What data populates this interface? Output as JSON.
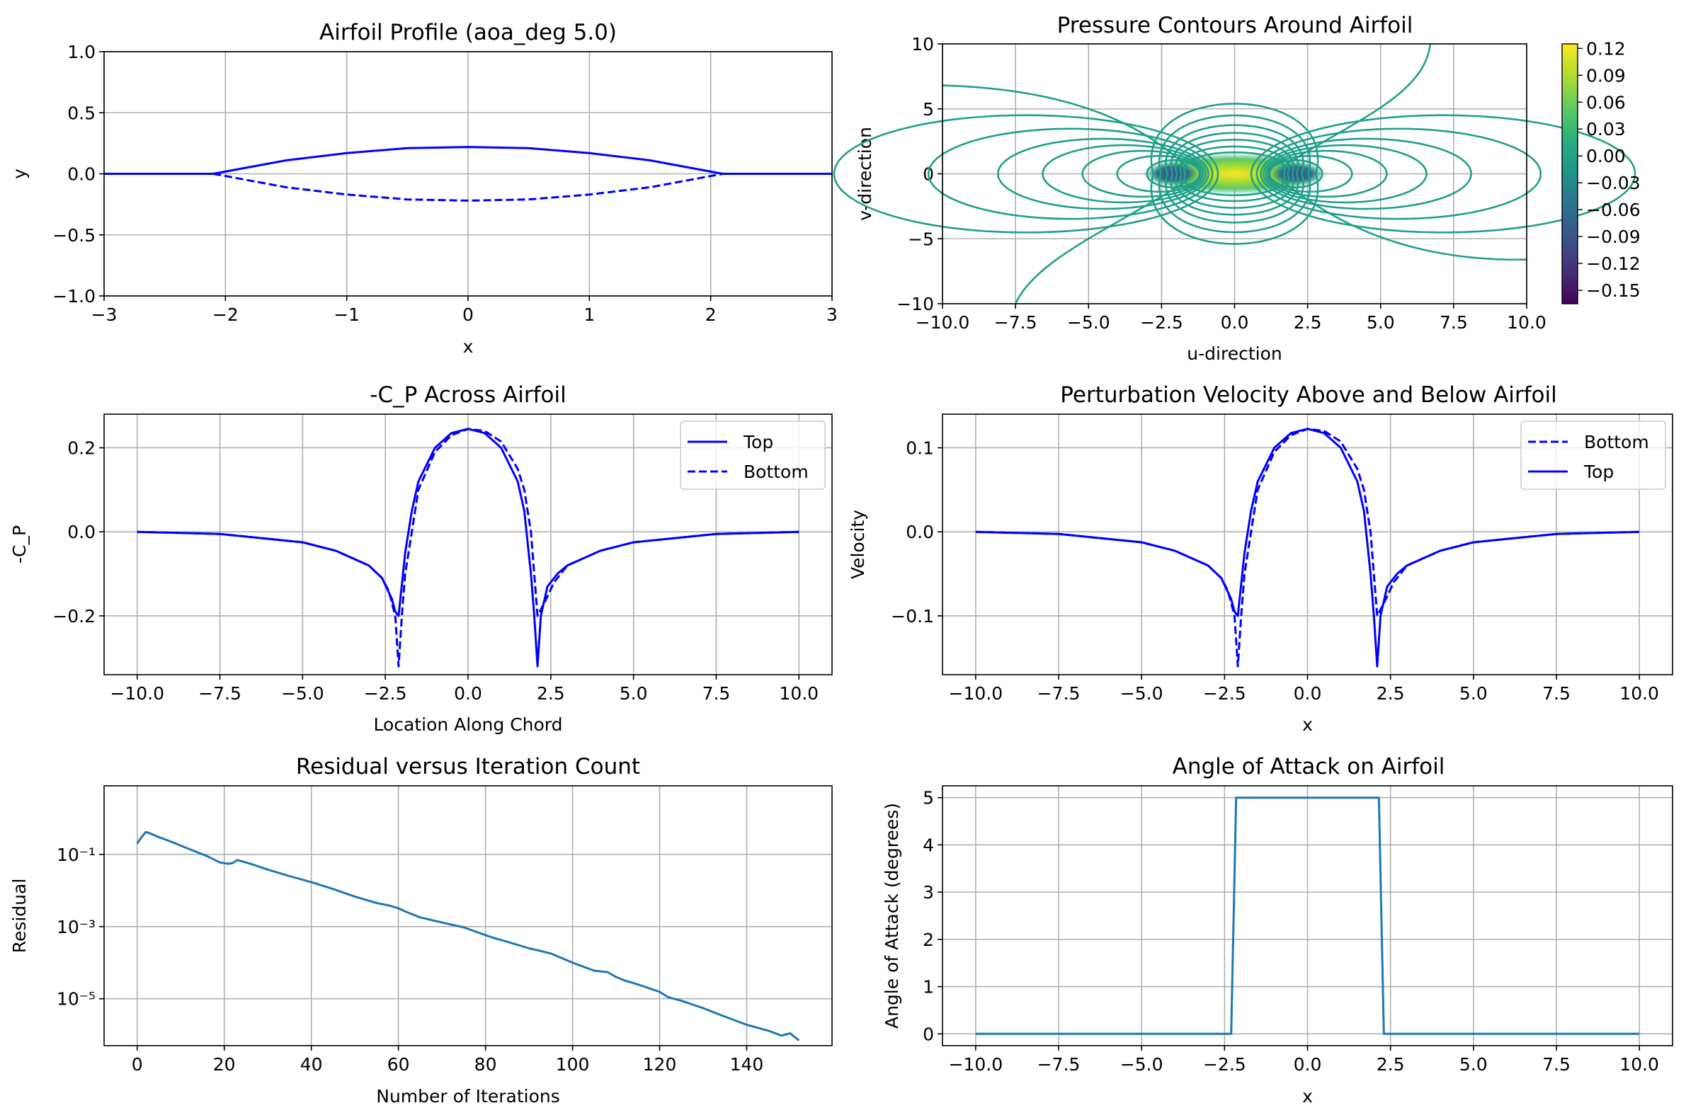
{
  "figure": {
    "colors": {
      "blue": "#0000ff",
      "mpl_blue": "#1f77b4",
      "grid": "#b0b0b0",
      "contour": "#21a08a"
    }
  },
  "chart_data": [
    {
      "type": "line",
      "title": "Airfoil Profile (aoa_deg 5.0)",
      "xlabel": "x",
      "ylabel": "y",
      "xlim": [
        -3,
        3
      ],
      "ylim": [
        -1.0,
        1.0
      ],
      "xticks": [
        -3,
        -2,
        -1,
        0,
        1,
        2,
        3
      ],
      "xtick_labels": [
        "−3",
        "−2",
        "−1",
        "0",
        "1",
        "2",
        "3"
      ],
      "yticks": [
        -1.0,
        -0.5,
        0.0,
        0.5,
        1.0
      ],
      "ytick_labels": [
        "−1.0",
        "−0.5",
        "0.0",
        "0.5",
        "1.0"
      ],
      "grid": true,
      "series": [
        {
          "style": "solid",
          "x": [
            -3.0,
            -2.1,
            -1.5,
            -1.0,
            -0.5,
            0.0,
            0.5,
            1.0,
            1.5,
            2.1,
            3.0
          ],
          "y": [
            0.0,
            0.0,
            0.11,
            0.17,
            0.21,
            0.22,
            0.21,
            0.17,
            0.11,
            0.0,
            0.0
          ]
        },
        {
          "style": "dashed",
          "x": [
            -2.1,
            -1.5,
            -1.0,
            -0.5,
            0.0,
            0.5,
            1.0,
            1.5,
            2.1
          ],
          "y": [
            0.0,
            -0.11,
            -0.17,
            -0.21,
            -0.22,
            -0.21,
            -0.17,
            -0.11,
            0.0
          ]
        }
      ]
    },
    {
      "type": "contour",
      "title": "Pressure Contours Around Airfoil",
      "xlabel": "u-direction",
      "ylabel": "v-direction",
      "xlim": [
        -10,
        10
      ],
      "ylim": [
        -10,
        10
      ],
      "xticks": [
        -10,
        -7.5,
        -5,
        -2.5,
        0,
        2.5,
        5,
        7.5,
        10
      ],
      "xtick_labels": [
        "−10.0",
        "−7.5",
        "−5.0",
        "−2.5",
        "0.0",
        "2.5",
        "5.0",
        "7.5",
        "10.0"
      ],
      "yticks": [
        -10,
        -5,
        0,
        5,
        10
      ],
      "ytick_labels": [
        "−10",
        "−5",
        "0",
        "5",
        "10"
      ],
      "grid": true,
      "colorbar": {
        "range": [
          -0.165,
          0.125
        ],
        "ticks": [
          0.12,
          0.09,
          0.06,
          0.03,
          0.0,
          -0.03,
          -0.06,
          -0.09,
          -0.12,
          -0.15
        ],
        "tick_labels": [
          "0.12",
          "0.09",
          "0.06",
          "0.03",
          "0.00",
          "−0.03",
          "−0.06",
          "−0.09",
          "−0.12",
          "−0.15"
        ],
        "colormap": "viridis"
      }
    },
    {
      "type": "line",
      "title": "-C_P Across Airfoil",
      "xlabel": "Location Along Chord",
      "ylabel": "-C_P",
      "xlim": [
        -11,
        11
      ],
      "ylim": [
        -0.34,
        0.28
      ],
      "xticks": [
        -10,
        -7.5,
        -5,
        -2.5,
        0,
        2.5,
        5,
        7.5,
        10
      ],
      "xtick_labels": [
        "−10.0",
        "−7.5",
        "−5.0",
        "−2.5",
        "0.0",
        "2.5",
        "5.0",
        "7.5",
        "10.0"
      ],
      "yticks": [
        -0.2,
        0.0,
        0.2
      ],
      "ytick_labels": [
        "−0.2",
        "0.0",
        "0.2"
      ],
      "grid": true,
      "legend_position": "top-right",
      "series": [
        {
          "name": "Top",
          "style": "solid",
          "x": [
            -10,
            -7.5,
            -5,
            -4,
            -3,
            -2.6,
            -2.3,
            -2.2,
            -2.1,
            -1.9,
            -1.7,
            -1.5,
            -1.0,
            -0.5,
            0.0,
            0.5,
            1.0,
            1.5,
            1.7,
            1.9,
            2.0,
            2.1,
            2.2,
            2.4,
            2.7,
            3.0,
            4.0,
            5.0,
            7.5,
            10
          ],
          "y": [
            0.0,
            -0.005,
            -0.025,
            -0.045,
            -0.08,
            -0.11,
            -0.16,
            -0.19,
            -0.2,
            -0.05,
            0.05,
            0.12,
            0.2,
            0.235,
            0.245,
            0.235,
            0.2,
            0.12,
            0.05,
            -0.1,
            -0.2,
            -0.32,
            -0.2,
            -0.13,
            -0.1,
            -0.08,
            -0.045,
            -0.025,
            -0.005,
            0.0
          ]
        },
        {
          "name": "Bottom",
          "style": "dashed",
          "x": [
            -10,
            -7.5,
            -5,
            -4,
            -3,
            -2.6,
            -2.4,
            -2.2,
            -2.1,
            -2.0,
            -1.9,
            -1.7,
            -1.5,
            -1.0,
            -0.5,
            0.0,
            0.5,
            1.0,
            1.5,
            1.7,
            1.9,
            2.1,
            2.3,
            2.6,
            3.0,
            4.0,
            5.0,
            7.5,
            10
          ],
          "y": [
            0.0,
            -0.005,
            -0.025,
            -0.045,
            -0.08,
            -0.11,
            -0.14,
            -0.2,
            -0.32,
            -0.2,
            -0.1,
            0.0,
            0.1,
            0.19,
            0.23,
            0.245,
            0.24,
            0.215,
            0.15,
            0.1,
            0.0,
            -0.2,
            -0.17,
            -0.12,
            -0.08,
            -0.045,
            -0.025,
            -0.005,
            0.0
          ]
        }
      ]
    },
    {
      "type": "line",
      "title": "Perturbation Velocity Above and Below Airfoil",
      "xlabel": "x",
      "ylabel": "Velocity",
      "xlim": [
        -11,
        11
      ],
      "ylim": [
        -0.17,
        0.14
      ],
      "xticks": [
        -10,
        -7.5,
        -5,
        -2.5,
        0,
        2.5,
        5,
        7.5,
        10
      ],
      "xtick_labels": [
        "−10.0",
        "−7.5",
        "−5.0",
        "−2.5",
        "0.0",
        "2.5",
        "5.0",
        "7.5",
        "10.0"
      ],
      "yticks": [
        -0.1,
        0.0,
        0.1
      ],
      "ytick_labels": [
        "−0.1",
        "0.0",
        "0.1"
      ],
      "grid": true,
      "legend_position": "top-right",
      "series": [
        {
          "name": "Bottom",
          "style": "dashed",
          "x": [
            -10,
            -7.5,
            -5,
            -4,
            -3,
            -2.6,
            -2.4,
            -2.2,
            -2.1,
            -2.0,
            -1.9,
            -1.7,
            -1.5,
            -1.0,
            -0.5,
            0.0,
            0.5,
            1.0,
            1.5,
            1.7,
            1.9,
            2.1,
            2.3,
            2.6,
            3.0,
            4.0,
            5.0,
            7.5,
            10
          ],
          "y": [
            0.0,
            -0.0025,
            -0.0125,
            -0.0225,
            -0.04,
            -0.055,
            -0.07,
            -0.1,
            -0.16,
            -0.1,
            -0.05,
            0.0,
            0.05,
            0.095,
            0.115,
            0.1225,
            0.12,
            0.1075,
            0.075,
            0.05,
            0.0,
            -0.1,
            -0.085,
            -0.06,
            -0.04,
            -0.0225,
            -0.0125,
            -0.0025,
            0.0
          ]
        },
        {
          "name": "Top",
          "style": "solid",
          "x": [
            -10,
            -7.5,
            -5,
            -4,
            -3,
            -2.6,
            -2.3,
            -2.2,
            -2.1,
            -1.9,
            -1.7,
            -1.5,
            -1.0,
            -0.5,
            0.0,
            0.5,
            1.0,
            1.5,
            1.7,
            1.9,
            2.0,
            2.1,
            2.2,
            2.4,
            2.7,
            3.0,
            4.0,
            5.0,
            7.5,
            10
          ],
          "y": [
            0.0,
            -0.0025,
            -0.0125,
            -0.0225,
            -0.04,
            -0.055,
            -0.08,
            -0.095,
            -0.1,
            -0.025,
            0.025,
            0.06,
            0.1,
            0.1175,
            0.1225,
            0.1175,
            0.1,
            0.06,
            0.025,
            -0.05,
            -0.1,
            -0.16,
            -0.1,
            -0.065,
            -0.05,
            -0.04,
            -0.0225,
            -0.0125,
            -0.0025,
            0.0
          ]
        }
      ]
    },
    {
      "type": "line",
      "title": "Residual versus Iteration Count",
      "xlabel": "Number of Iterations",
      "ylabel": "Residual",
      "yscale": "log",
      "xlim": [
        -7.6,
        159.6
      ],
      "ylim_log10": [
        -6.3,
        0.9
      ],
      "xticks": [
        0,
        20,
        40,
        60,
        80,
        100,
        120,
        140
      ],
      "xtick_labels": [
        "0",
        "20",
        "40",
        "60",
        "80",
        "100",
        "120",
        "140"
      ],
      "yticks": [
        1e-05,
        0.001,
        0.1
      ],
      "ytick_labels": [
        "10⁻⁵",
        "10⁻³",
        "10⁻¹"
      ],
      "grid": true,
      "series": [
        {
          "x": [
            0,
            1,
            2,
            3,
            5,
            8,
            12,
            16,
            19,
            21,
            22,
            23,
            26,
            30,
            35,
            40,
            45,
            50,
            55,
            58,
            60,
            62,
            65,
            70,
            75,
            80,
            82,
            85,
            90,
            92,
            95,
            100,
            105,
            108,
            110,
            112,
            115,
            120,
            122,
            125,
            130,
            135,
            140,
            145,
            148,
            150,
            152
          ],
          "y": [
            0.2,
            0.3,
            0.42,
            0.38,
            0.3,
            0.22,
            0.14,
            0.09,
            0.06,
            0.055,
            0.058,
            0.07,
            0.055,
            0.038,
            0.025,
            0.017,
            0.011,
            0.0068,
            0.0045,
            0.0038,
            0.0032,
            0.0025,
            0.0018,
            0.0013,
            0.00095,
            0.00058,
            0.00048,
            0.00038,
            0.00025,
            0.00022,
            0.00018,
            0.0001,
            6e-05,
            5.5e-05,
            4e-05,
            3.2e-05,
            2.5e-05,
            1.55e-05,
            1.1e-05,
            8.8e-06,
            5.5e-06,
            3.2e-06,
            1.9e-06,
            1.3e-06,
            9.5e-07,
            1.1e-06,
            7e-07
          ]
        }
      ]
    },
    {
      "type": "line",
      "title": "Angle of Attack on Airfoil",
      "xlabel": "x",
      "ylabel": "Angle of Attack (degrees)",
      "xlim": [
        -11,
        11
      ],
      "ylim": [
        -0.25,
        5.25
      ],
      "xticks": [
        -10,
        -7.5,
        -5,
        -2.5,
        0,
        2.5,
        5,
        7.5,
        10
      ],
      "xtick_labels": [
        "−10.0",
        "−7.5",
        "−5.0",
        "−2.5",
        "0.0",
        "2.5",
        "5.0",
        "7.5",
        "10.0"
      ],
      "yticks": [
        0,
        1,
        2,
        3,
        4,
        5
      ],
      "ytick_labels": [
        "0",
        "1",
        "2",
        "3",
        "4",
        "5"
      ],
      "grid": true,
      "series": [
        {
          "x": [
            -10,
            -2.3,
            -2.15,
            2.15,
            2.3,
            10
          ],
          "y": [
            0,
            0,
            5,
            5,
            0,
            0
          ]
        }
      ]
    }
  ]
}
